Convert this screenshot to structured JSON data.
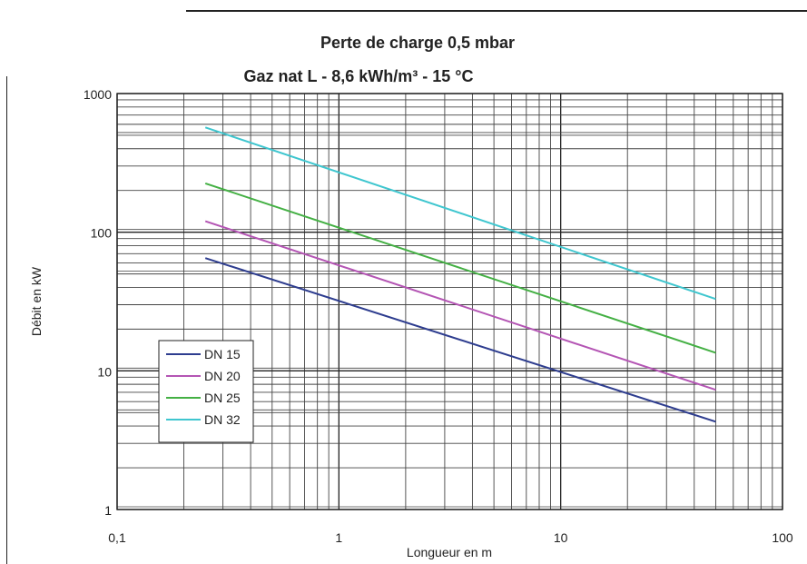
{
  "chart_data": {
    "type": "line",
    "title": "Perte de charge 0,5 mbar",
    "subtitle": "Gaz nat L - 8,6 kWh/m³ - 15 °C",
    "xlabel": "Longueur en m",
    "ylabel": "Débit en kW",
    "x_scale": "log",
    "y_scale": "log",
    "xlim": [
      0.1,
      100
    ],
    "ylim": [
      1,
      1000
    ],
    "x_ticks": [
      "0,1",
      "1",
      "10",
      "100"
    ],
    "y_ticks": [
      "1",
      "10",
      "100",
      "1000"
    ],
    "grid": true,
    "legend_position": "bottom-left",
    "series": [
      {
        "name": "DN 15",
        "color": "#2e3d8f",
        "x": [
          0.25,
          50
        ],
        "y": [
          65,
          4.3
        ]
      },
      {
        "name": "DN 20",
        "color": "#b455b4",
        "x": [
          0.25,
          50
        ],
        "y": [
          120,
          7.3
        ]
      },
      {
        "name": "DN 25",
        "color": "#44b044",
        "x": [
          0.25,
          50
        ],
        "y": [
          225,
          13.5
        ]
      },
      {
        "name": "DN 32",
        "color": "#3fc6cf",
        "x": [
          0.25,
          50
        ],
        "y": [
          570,
          33
        ]
      }
    ]
  }
}
